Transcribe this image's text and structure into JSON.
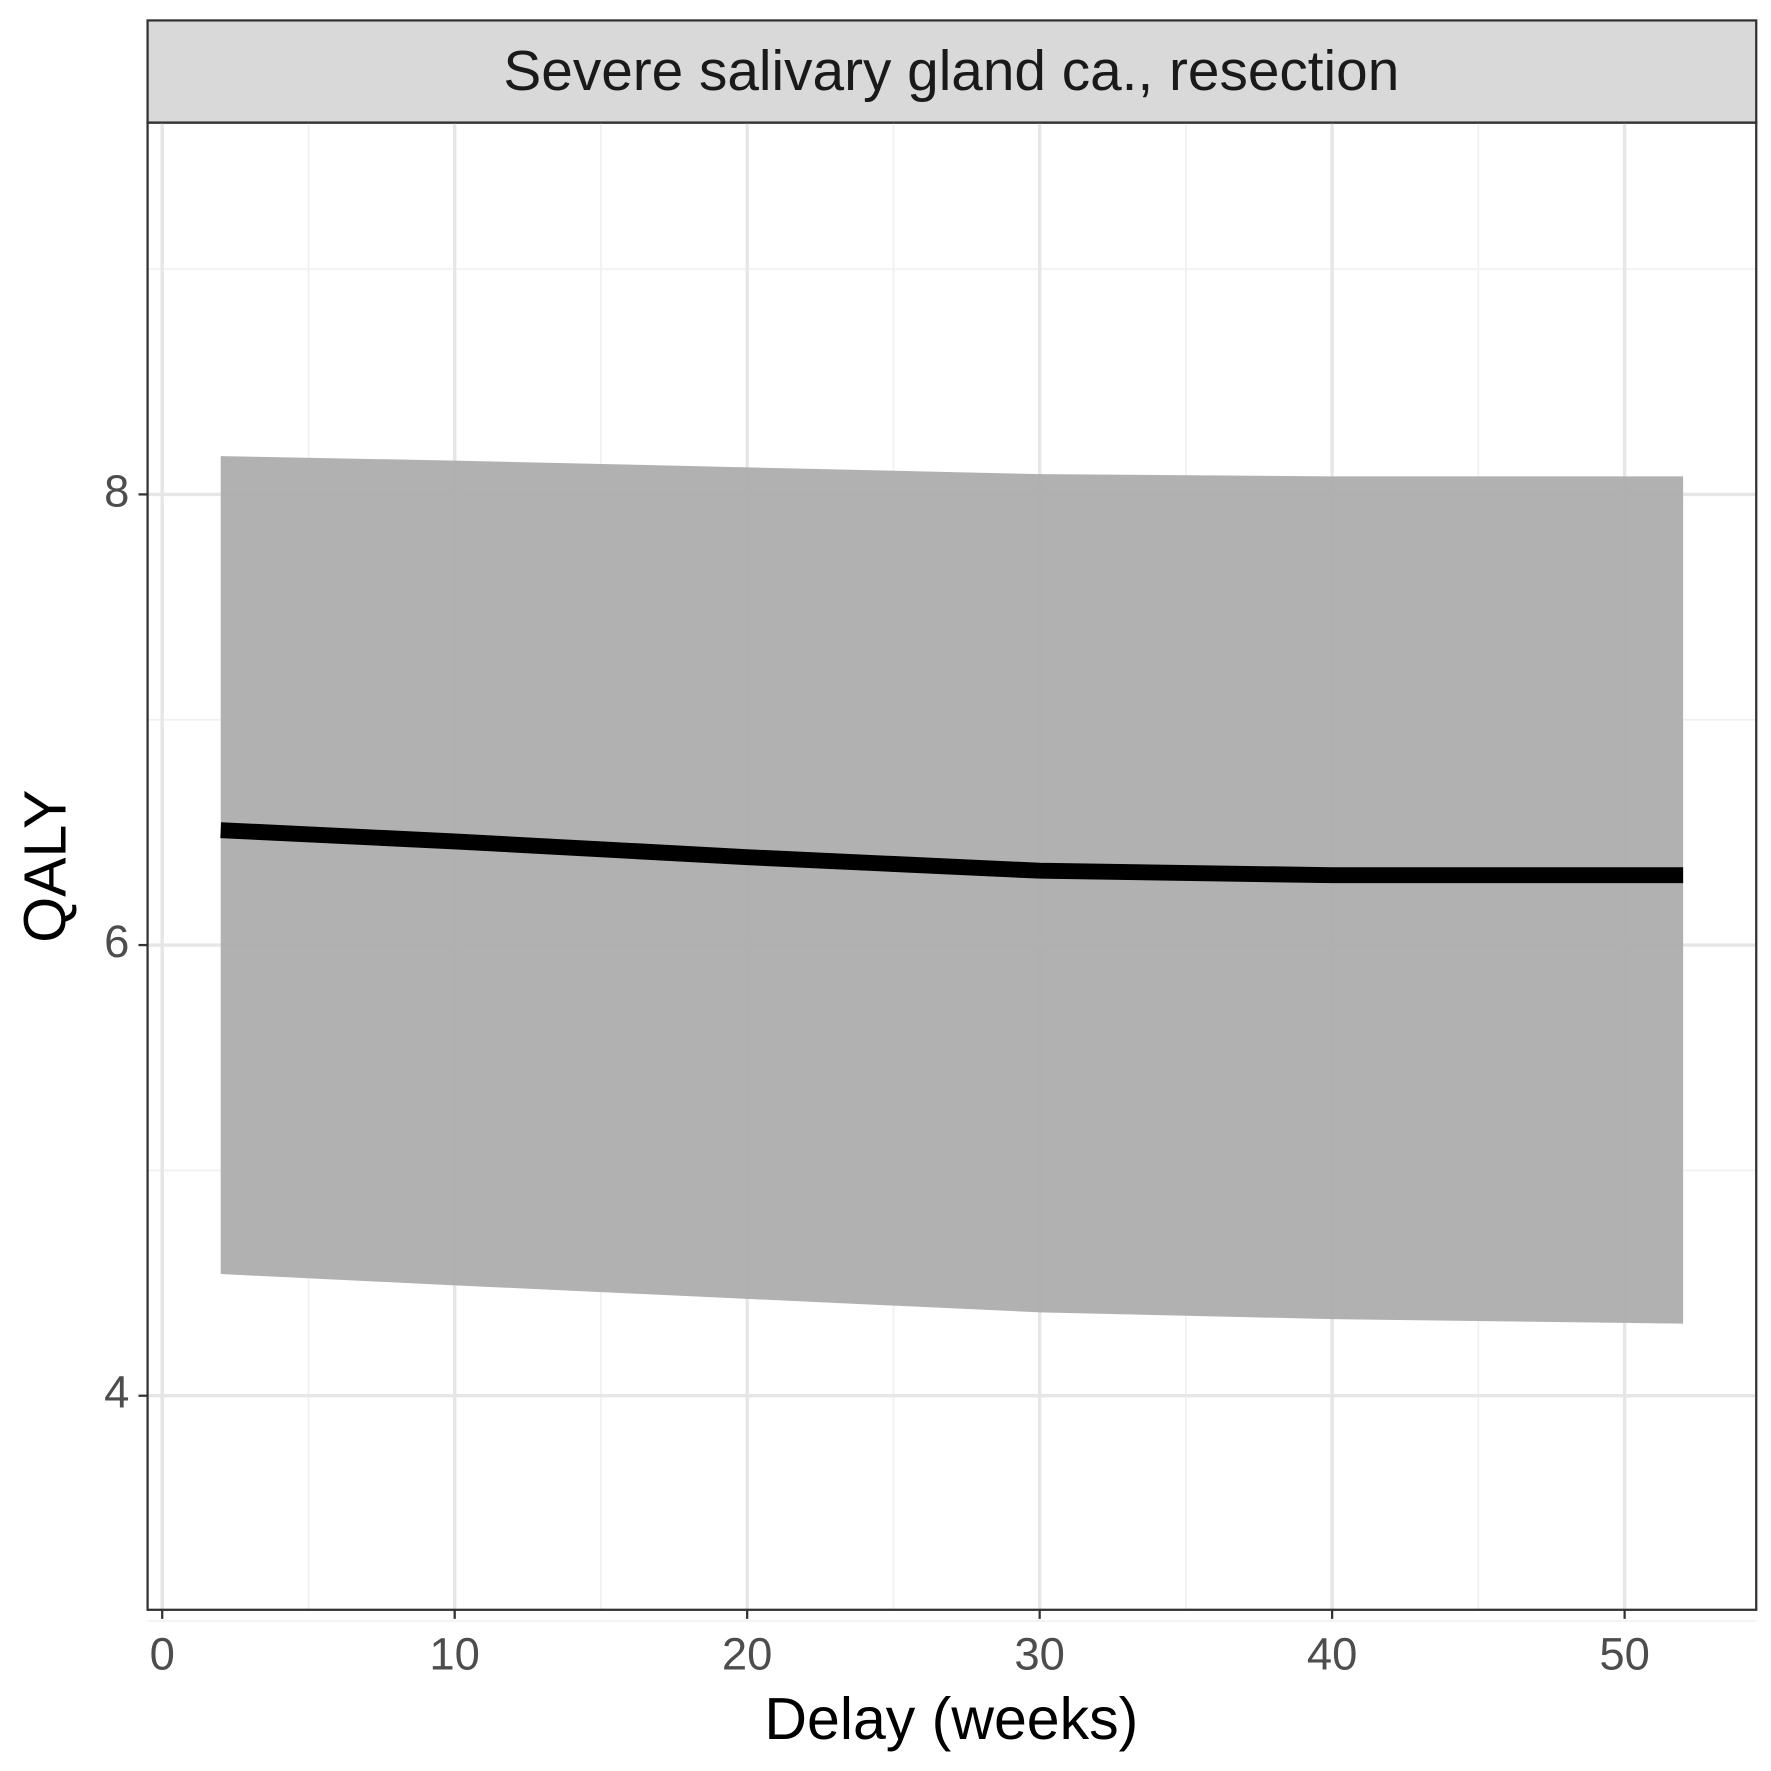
{
  "chart_data": {
    "type": "ribbon-line",
    "strip_title": "Severe salivary gland ca., resection",
    "x_label": "Delay (weeks)",
    "y_label": "QALY",
    "x": [
      2,
      10,
      20,
      30,
      40,
      52
    ],
    "values": [
      6.51,
      6.46,
      6.39,
      6.33,
      6.31,
      6.31
    ],
    "lower": [
      4.54,
      4.49,
      4.43,
      4.37,
      4.34,
      4.32
    ],
    "upper": [
      8.17,
      8.15,
      8.12,
      8.09,
      8.08,
      8.08
    ],
    "color": "#000000",
    "band_color": "#adadad",
    "xlim": [
      -0.5,
      54.5
    ],
    "xticks": [
      0,
      10,
      20,
      30,
      40,
      50
    ],
    "xminor": [
      5,
      15,
      25,
      35,
      45
    ],
    "ylim": [
      3.05,
      9.65
    ],
    "yticks": [
      4,
      6,
      8
    ],
    "yminor": [
      3,
      5,
      7,
      9
    ],
    "grid": true
  }
}
